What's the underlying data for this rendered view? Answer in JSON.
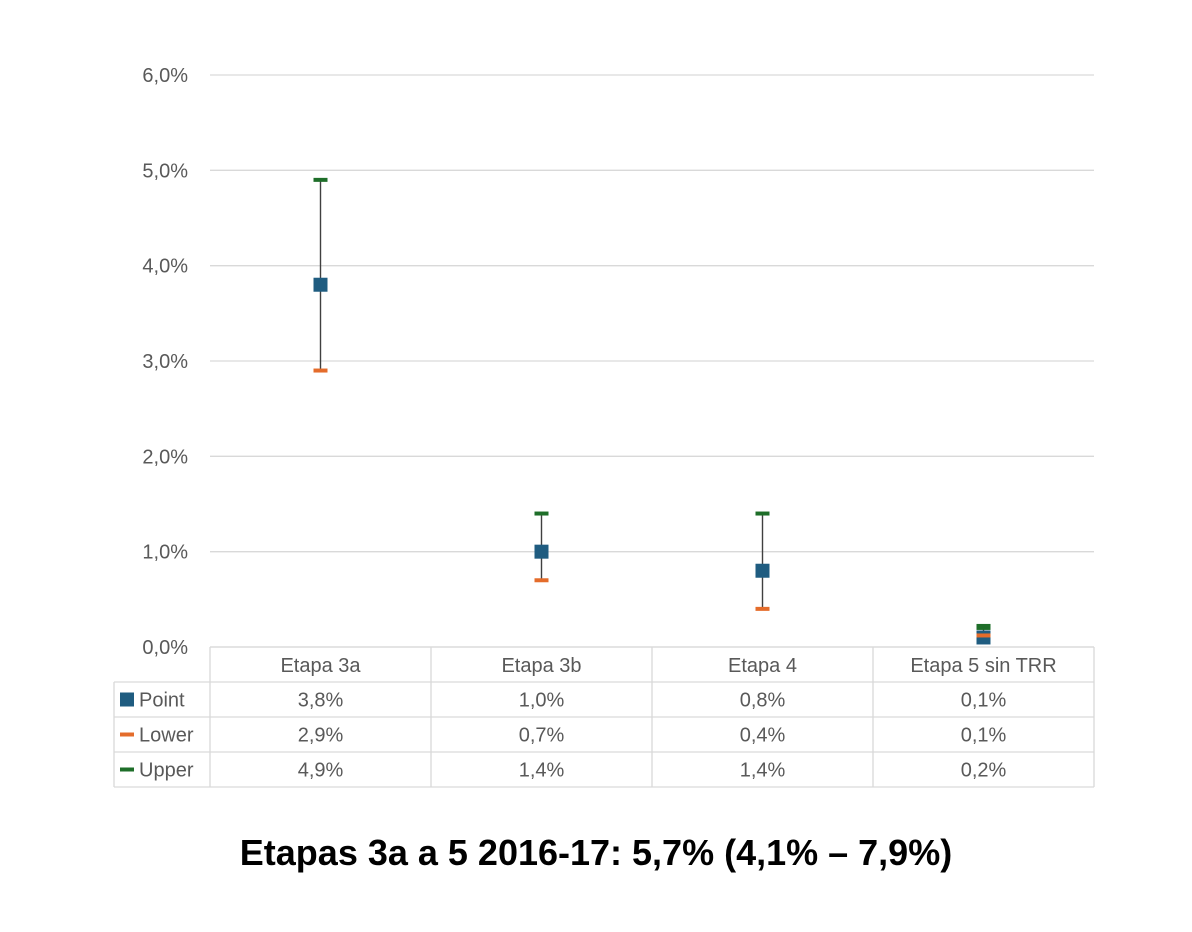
{
  "chart_data": {
    "type": "scatter",
    "categories": [
      "Etapa 3a",
      "Etapa 3b",
      "Etapa 4",
      "Etapa 5 sin TRR"
    ],
    "series": [
      {
        "name": "Point",
        "values": [
          3.8,
          1.0,
          0.8,
          0.1
        ],
        "labels": [
          "3,8%",
          "1,0%",
          "0,8%",
          "0,1%"
        ],
        "color": "#1f5c80",
        "marker": "square"
      },
      {
        "name": "Lower",
        "values": [
          2.9,
          0.7,
          0.4,
          0.1
        ],
        "labels": [
          "2,9%",
          "0,7%",
          "0,4%",
          "0,1%"
        ],
        "color": "#e46c2b",
        "marker": "dash"
      },
      {
        "name": "Upper",
        "values": [
          4.9,
          1.4,
          1.4,
          0.2
        ],
        "labels": [
          "4,9%",
          "1,4%",
          "1,4%",
          "0,2%"
        ],
        "color": "#1e6e29",
        "marker": "dash"
      }
    ],
    "ylim": [
      0,
      6
    ],
    "y_ticks": [
      0,
      1,
      2,
      3,
      4,
      5,
      6
    ],
    "y_tick_labels": [
      "0,0%",
      "1,0%",
      "2,0%",
      "3,0%",
      "4,0%",
      "5,0%",
      "6,0%"
    ],
    "grid": true,
    "legend": "data-table-left",
    "error_bar_color": "#404040",
    "xlabel": "",
    "ylabel": ""
  },
  "footer": {
    "title": "Etapas 3a a 5 2016-17: 5,7% (4,1% – 7,9%)"
  }
}
